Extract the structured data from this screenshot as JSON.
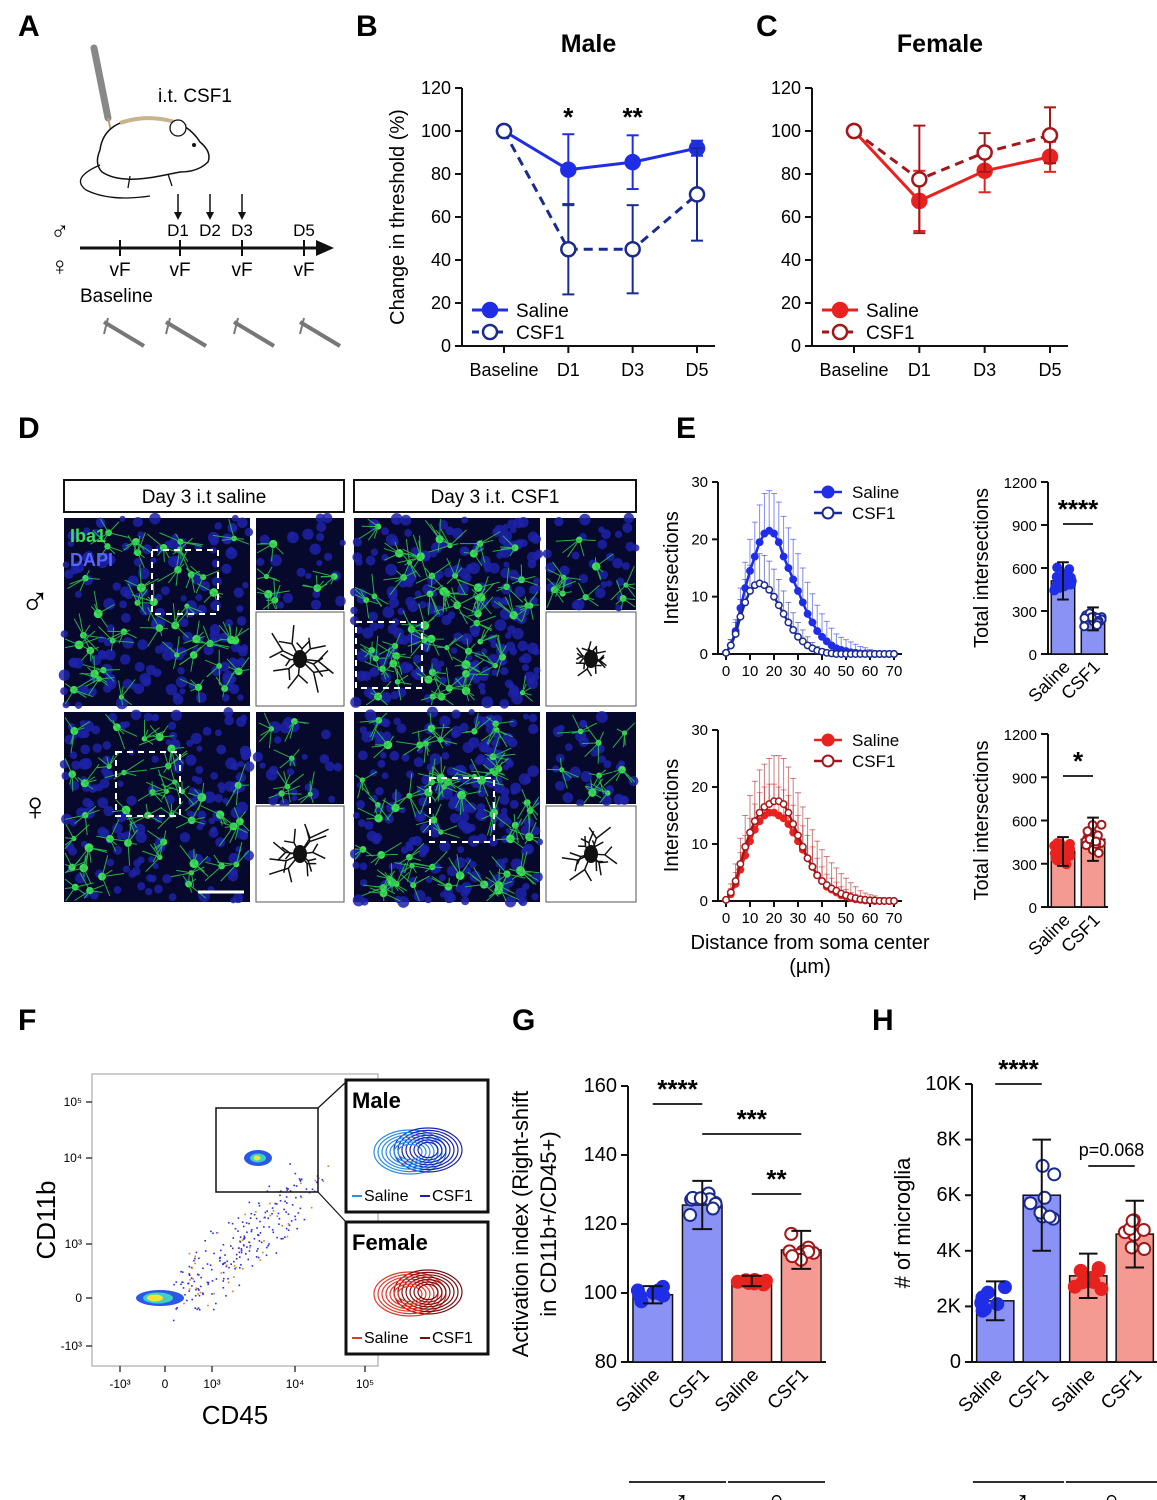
{
  "panels": {
    "A": {
      "letter": "A",
      "injection_label": "i.t. CSF1",
      "timepoints": [
        "D1",
        "D2",
        "D3",
        "D5"
      ],
      "test_labels": [
        "vF",
        "vF",
        "vF",
        "vF"
      ],
      "baseline_label": "Baseline",
      "sex_male": "♂",
      "sex_female": "♀"
    },
    "B": {
      "letter": "B",
      "title": "Male"
    },
    "C": {
      "letter": "C",
      "title": "Female"
    },
    "D": {
      "letter": "D",
      "col_saline": "Day 3 i.t saline",
      "col_csf1": "Day 3 i.t. CSF1",
      "stain_iba1": "Iba1",
      "stain_dapi": "DAPI",
      "row_male": "♂",
      "row_female": "♀"
    },
    "E": {
      "letter": "E"
    },
    "F": {
      "letter": "F",
      "xlabel": "CD45",
      "ylabel": "CD11b",
      "x_ticks": [
        "-10³",
        "0",
        "10³",
        "10⁴",
        "10⁵"
      ],
      "y_ticks": [
        "10⁵",
        "10⁴",
        "10³",
        "0",
        "-10³"
      ],
      "inset_male_title": "Male",
      "inset_female_title": "Female",
      "legend_saline": "Saline",
      "legend_csf1": "CSF1"
    },
    "G": {
      "letter": "G"
    },
    "H": {
      "letter": "H"
    }
  },
  "colors": {
    "male_saline": "#1f2ee6",
    "male_csf1": "#1b2a8f",
    "female_saline": "#e8221f",
    "female_csf1": "#a3171a",
    "male_bar": "#8a93f5",
    "female_bar": "#f59a92"
  },
  "chart_data": [
    {
      "id": "B",
      "type": "line",
      "title": "Male",
      "xlabel": "",
      "ylabel": "Change in threshold (%)",
      "categories": [
        "Baseline",
        "D1",
        "D3",
        "D5"
      ],
      "ylim": [
        0,
        120
      ],
      "yticks": [
        0,
        20,
        40,
        60,
        80,
        100,
        120
      ],
      "series": [
        {
          "name": "Saline",
          "values": [
            100,
            82,
            85.5,
            92
          ],
          "errors": [
            0,
            16.5,
            12.5,
            3.5
          ],
          "style": "solid-filled"
        },
        {
          "name": "CSF1",
          "values": [
            100,
            45,
            45,
            70.5
          ],
          "errors": [
            0,
            21,
            20.5,
            21.5
          ],
          "style": "dashed-open"
        }
      ],
      "annotations": [
        {
          "category": "D1",
          "text": "*"
        },
        {
          "category": "D3",
          "text": "**"
        }
      ]
    },
    {
      "id": "C",
      "type": "line",
      "title": "Female",
      "xlabel": "",
      "ylabel": "",
      "categories": [
        "Baseline",
        "D1",
        "D3",
        "D5"
      ],
      "ylim": [
        0,
        120
      ],
      "yticks": [
        0,
        20,
        40,
        60,
        80,
        100,
        120
      ],
      "series": [
        {
          "name": "Saline",
          "values": [
            100,
            67.5,
            81.5,
            88
          ],
          "errors": [
            0,
            14,
            10,
            7
          ],
          "style": "solid-filled"
        },
        {
          "name": "CSF1",
          "values": [
            100,
            77.5,
            90,
            98
          ],
          "errors": [
            0,
            25,
            9,
            13
          ],
          "style": "dashed-open"
        }
      ],
      "annotations": []
    },
    {
      "id": "E1",
      "type": "line",
      "title": "",
      "xlabel": "",
      "ylabel": "Intersections",
      "x": [
        0,
        2,
        4,
        6,
        8,
        10,
        12,
        14,
        16,
        18,
        20,
        22,
        24,
        26,
        28,
        30,
        32,
        34,
        36,
        38,
        40,
        42,
        44,
        46,
        48,
        50,
        52,
        54,
        56,
        58,
        60,
        62,
        64,
        66,
        68,
        70
      ],
      "xticks": [
        0,
        10,
        20,
        30,
        40,
        50,
        60,
        70
      ],
      "ylim": [
        0,
        30
      ],
      "yticks": [
        0,
        10,
        20,
        30
      ],
      "series": [
        {
          "name": "Saline",
          "values": [
            0.2,
            1.5,
            4,
            8,
            11.5,
            14.5,
            17,
            19.5,
            21,
            21.5,
            21,
            19.5,
            17,
            15,
            13,
            11,
            9,
            7,
            5.5,
            4,
            3,
            2.2,
            1.5,
            1,
            0.7,
            0.5,
            0.3,
            0.2,
            0.1,
            0.1,
            0,
            0,
            0,
            0,
            0,
            0
          ],
          "errors": [
            0.2,
            1,
            2,
            3.5,
            4.5,
            5.5,
            6,
            6.5,
            7,
            7,
            7,
            7,
            7,
            7,
            7,
            6.5,
            6,
            5.5,
            5,
            4.5,
            4,
            3.5,
            3,
            2.5,
            2.2,
            2,
            1.8,
            1.5,
            1.2,
            1,
            0.8,
            0.6,
            0.4,
            0.2,
            0.1,
            0.1
          ],
          "style": "solid-filled"
        },
        {
          "name": "CSF1",
          "values": [
            0.2,
            1.5,
            3.5,
            6.5,
            9,
            11,
            12,
            12.3,
            12,
            11.2,
            10,
            8.5,
            7,
            5.5,
            4.2,
            3,
            2.2,
            1.5,
            1,
            0.6,
            0.4,
            0.2,
            0.1,
            0,
            0,
            0,
            0,
            0,
            0,
            0,
            0,
            0,
            0,
            0,
            0,
            0
          ],
          "errors": [
            0.2,
            1,
            2,
            3,
            4,
            4.5,
            5,
            5.2,
            5.2,
            5,
            4.8,
            4.5,
            4,
            3.5,
            3,
            2.5,
            2,
            1.5,
            1,
            0.7,
            0.5,
            0.3,
            0.2,
            0.1,
            0,
            0,
            0,
            0,
            0,
            0,
            0,
            0,
            0,
            0,
            0,
            0
          ],
          "style": "dashed-open"
        }
      ],
      "legend": [
        "Saline",
        "CSF1"
      ]
    },
    {
      "id": "E2",
      "type": "bar",
      "ylabel": "Total intersections",
      "categories": [
        "Saline",
        "CSF1"
      ],
      "values": [
        510,
        245
      ],
      "errors": [
        130,
        80
      ],
      "ylim": [
        0,
        1200
      ],
      "yticks": [
        0,
        300,
        600,
        900,
        1200
      ],
      "significance": "****"
    },
    {
      "id": "E3",
      "type": "line",
      "title": "",
      "xlabel": "Distance from soma center (µm)",
      "ylabel": "Intersections",
      "x": [
        0,
        2,
        4,
        6,
        8,
        10,
        12,
        14,
        16,
        18,
        20,
        22,
        24,
        26,
        28,
        30,
        32,
        34,
        36,
        38,
        40,
        42,
        44,
        46,
        48,
        50,
        52,
        54,
        56,
        58,
        60,
        62,
        64,
        66,
        68,
        70
      ],
      "xticks": [
        0,
        10,
        20,
        30,
        40,
        50,
        60,
        70
      ],
      "ylim": [
        0,
        30
      ],
      "yticks": [
        0,
        10,
        20,
        30
      ],
      "series": [
        {
          "name": "Saline",
          "values": [
            0.2,
            1.2,
            3,
            5.5,
            8,
            10.5,
            12.5,
            14,
            15,
            15.5,
            15.5,
            15,
            14.5,
            13.5,
            12,
            10.5,
            9,
            7.5,
            6,
            4.5,
            3.5,
            2.5,
            2,
            1.5,
            1,
            0.8,
            0.5,
            0.3,
            0.2,
            0.1,
            0.1,
            0,
            0,
            0,
            0,
            0
          ],
          "errors": [
            0.2,
            1,
            2,
            3,
            3.5,
            4,
            4.5,
            5,
            5,
            5,
            5,
            5,
            5,
            5,
            4.8,
            4.5,
            4.2,
            4,
            3.5,
            3,
            2.5,
            2.2,
            2,
            1.8,
            1.5,
            1.2,
            1,
            0.8,
            0.6,
            0.4,
            0.3,
            0.2,
            0.1,
            0.1,
            0,
            0
          ],
          "style": "solid-filled"
        },
        {
          "name": "CSF1",
          "values": [
            0.2,
            1.5,
            3.5,
            6.5,
            9.5,
            12,
            14,
            15.5,
            16.5,
            17,
            17.5,
            17.5,
            17,
            15.5,
            13.5,
            11.5,
            9.5,
            7.5,
            6,
            4.5,
            3.5,
            2.8,
            2.2,
            1.8,
            1.3,
            1,
            0.7,
            0.5,
            0.3,
            0.2,
            0.1,
            0.1,
            0,
            0,
            0,
            0
          ],
          "errors": [
            0.2,
            1.5,
            3,
            4.5,
            5.5,
            6.5,
            7,
            7.5,
            7.5,
            8,
            8,
            8,
            8,
            8,
            8,
            7.5,
            7,
            7,
            6.5,
            6,
            5.5,
            5,
            4.5,
            4,
            3.5,
            3,
            2.5,
            2,
            1.5,
            1.2,
            1,
            0.8,
            0.6,
            0.4,
            0.2,
            0.1
          ],
          "style": "dashed-open"
        }
      ],
      "legend": [
        "Saline",
        "CSF1"
      ]
    },
    {
      "id": "E4",
      "type": "bar",
      "ylabel": "Total intersections",
      "categories": [
        "Saline",
        "CSF1"
      ],
      "values": [
        385,
        470
      ],
      "errors": [
        100,
        150
      ],
      "ylim": [
        0,
        1200
      ],
      "yticks": [
        0,
        300,
        600,
        900,
        1200
      ],
      "significance": "*"
    },
    {
      "id": "G",
      "type": "bar",
      "ylabel": "Activation index (Right-shift in CD11b+/CD45+)",
      "categories": [
        "Saline",
        "CSF1",
        "Saline",
        "CSF1"
      ],
      "groups": [
        "♂",
        "♀"
      ],
      "values": [
        99.5,
        125.5,
        103.5,
        112.5
      ],
      "errors": [
        2.5,
        7,
        1.5,
        5.5
      ],
      "ylim": [
        80,
        160
      ],
      "yticks": [
        80,
        100,
        120,
        140,
        160
      ],
      "significance": [
        {
          "between": [
            0,
            1
          ],
          "text": "****"
        },
        {
          "between": [
            1,
            3
          ],
          "text": "***"
        },
        {
          "between": [
            2,
            3
          ],
          "text": "**"
        }
      ]
    },
    {
      "id": "H",
      "type": "bar",
      "ylabel": "# of microglia",
      "categories": [
        "Saline",
        "CSF1",
        "Saline",
        "CSF1"
      ],
      "groups": [
        "♂",
        "♀"
      ],
      "values": [
        2200,
        6000,
        3100,
        4600
      ],
      "errors": [
        700,
        2000,
        800,
        1200
      ],
      "ylim": [
        0,
        10000
      ],
      "yticks": [
        0,
        2000,
        4000,
        6000,
        8000,
        10000
      ],
      "ytick_labels": [
        "0",
        "2K",
        "4K",
        "6K",
        "8K",
        "10K"
      ],
      "significance": [
        {
          "between": [
            0,
            1
          ],
          "text": "****"
        },
        {
          "between": [
            2,
            3
          ],
          "text": "p=0.068"
        }
      ]
    }
  ]
}
